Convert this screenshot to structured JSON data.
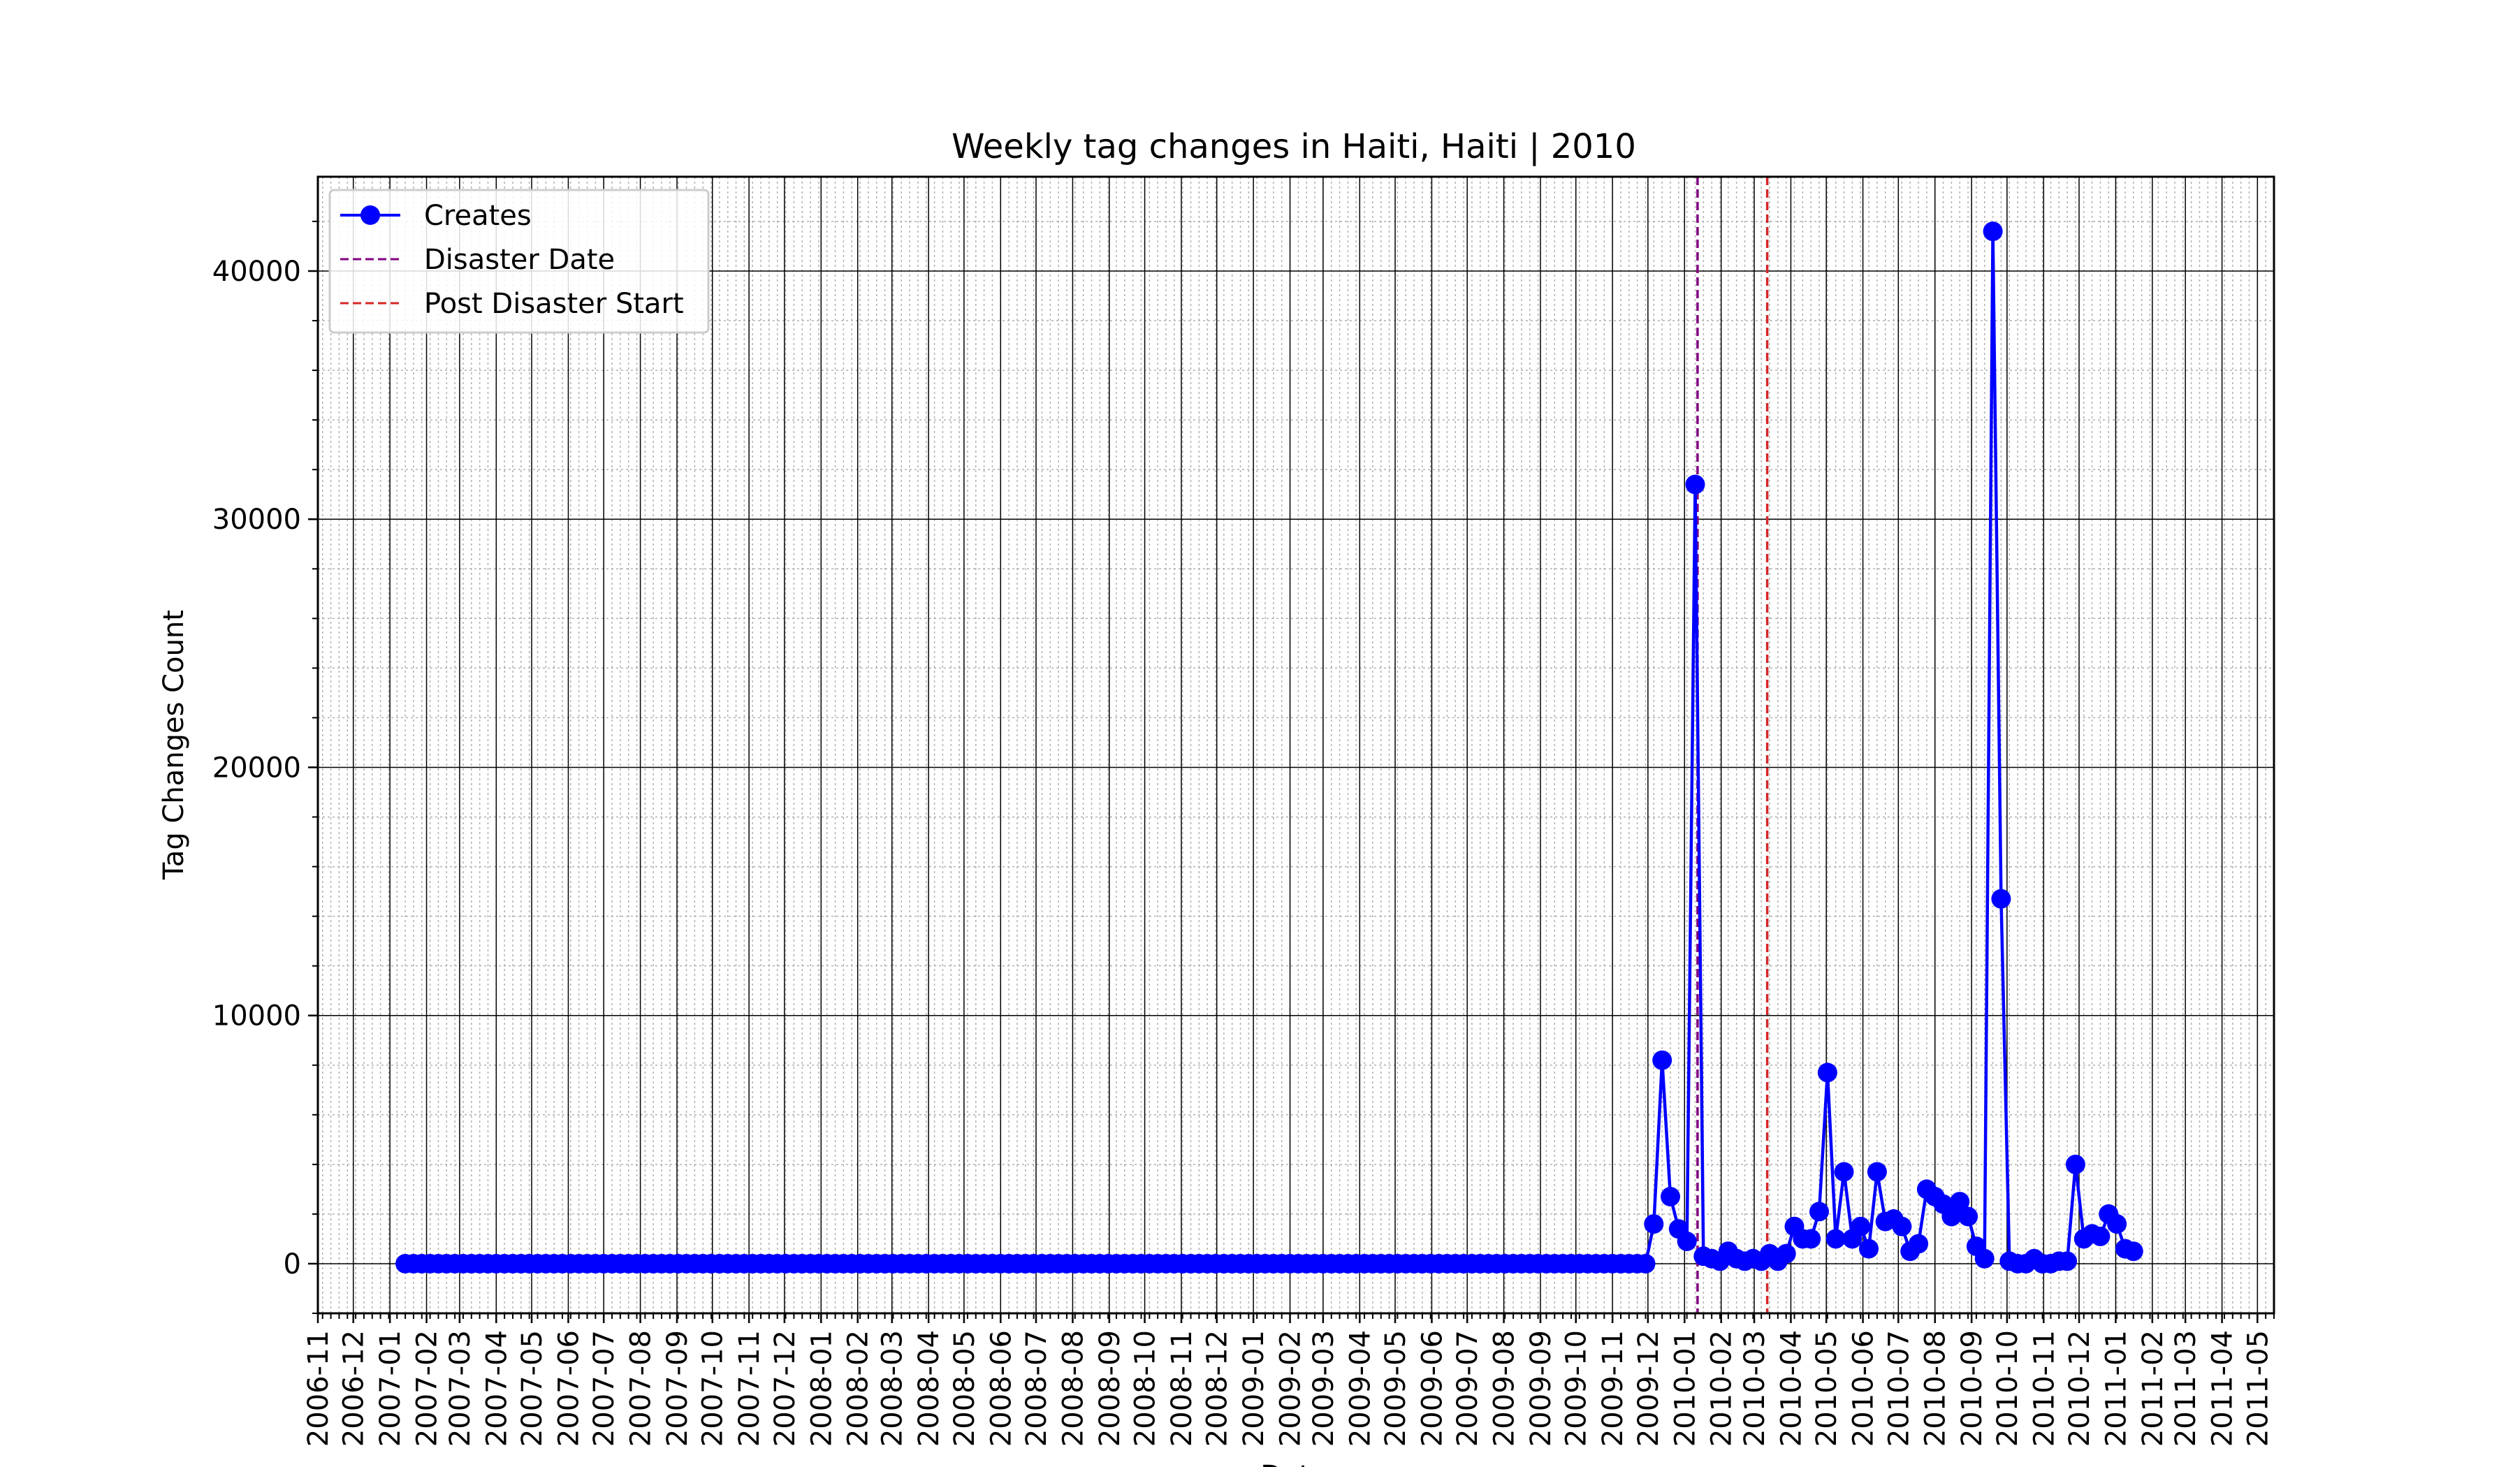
{
  "chart_data": {
    "type": "line",
    "title": "Weekly tag changes in Haiti, Haiti | 2010",
    "xlabel": "Date",
    "ylabel": "Tag Changes Count",
    "x_axis": "date",
    "xlim": [
      "2006-11-01",
      "2011-05-15"
    ],
    "ylim": [
      -2000,
      43800
    ],
    "yticks": [
      0,
      10000,
      20000,
      30000,
      40000
    ],
    "xtick_labels": [
      "2006-11",
      "2006-12",
      "2007-01",
      "2007-02",
      "2007-03",
      "2007-04",
      "2007-05",
      "2007-06",
      "2007-07",
      "2007-08",
      "2007-09",
      "2007-10",
      "2007-11",
      "2007-12",
      "2008-01",
      "2008-02",
      "2008-03",
      "2008-04",
      "2008-05",
      "2008-06",
      "2008-07",
      "2008-08",
      "2008-09",
      "2008-10",
      "2008-11",
      "2008-12",
      "2009-01",
      "2009-02",
      "2009-03",
      "2009-04",
      "2009-05",
      "2009-06",
      "2009-07",
      "2009-08",
      "2009-09",
      "2009-10",
      "2009-11",
      "2009-12",
      "2010-01",
      "2010-02",
      "2010-03",
      "2010-04",
      "2010-05",
      "2010-06",
      "2010-07",
      "2010-08",
      "2010-09",
      "2010-10",
      "2010-11",
      "2010-12",
      "2011-01",
      "2011-02",
      "2011-03",
      "2011-04",
      "2011-05"
    ],
    "grid": true,
    "legend_position": "top-left",
    "series": [
      {
        "name": "Creates",
        "color": "#0000ff",
        "marker": "circle",
        "start_date": "2007-01-14",
        "interval_days": 7,
        "values": [
          0,
          0,
          0,
          0,
          0,
          0,
          0,
          0,
          0,
          0,
          0,
          0,
          0,
          0,
          0,
          0,
          0,
          0,
          0,
          0,
          0,
          0,
          0,
          0,
          0,
          0,
          0,
          0,
          0,
          0,
          0,
          0,
          0,
          0,
          0,
          0,
          0,
          0,
          0,
          0,
          0,
          0,
          0,
          0,
          0,
          0,
          0,
          0,
          0,
          0,
          0,
          0,
          0,
          0,
          0,
          0,
          0,
          0,
          0,
          0,
          0,
          0,
          0,
          0,
          0,
          0,
          0,
          0,
          0,
          0,
          0,
          0,
          0,
          0,
          0,
          0,
          0,
          0,
          0,
          0,
          0,
          0,
          0,
          0,
          0,
          0,
          0,
          0,
          0,
          0,
          0,
          0,
          0,
          0,
          0,
          0,
          0,
          0,
          0,
          0,
          0,
          0,
          0,
          0,
          0,
          0,
          0,
          0,
          0,
          0,
          0,
          0,
          0,
          0,
          0,
          0,
          0,
          0,
          0,
          0,
          0,
          0,
          0,
          0,
          0,
          0,
          0,
          0,
          0,
          0,
          0,
          0,
          0,
          0,
          0,
          0,
          0,
          0,
          0,
          0,
          0,
          0,
          0,
          0,
          0,
          0,
          0,
          0,
          0,
          0,
          0,
          1600,
          8200,
          2700,
          1400,
          900,
          31400,
          300,
          200,
          100,
          500,
          200,
          100,
          200,
          100,
          400,
          100,
          400,
          1500,
          1000,
          1000,
          2100,
          7700,
          1000,
          3700,
          1000,
          1500,
          600,
          3700,
          1700,
          1800,
          1500,
          500,
          800,
          3000,
          2700,
          2400,
          1900,
          2500,
          1900,
          700,
          200,
          41600,
          14700,
          100,
          0,
          0,
          200,
          0,
          0,
          100,
          100,
          4000,
          1000,
          1200,
          1100,
          2000,
          1600,
          600,
          500
        ]
      }
    ],
    "vlines": [
      {
        "name": "Disaster Date",
        "date": "2010-01-12",
        "color": "#800080"
      },
      {
        "name": "Post Disaster Start",
        "date": "2010-03-12",
        "color": "#d62728"
      }
    ]
  }
}
